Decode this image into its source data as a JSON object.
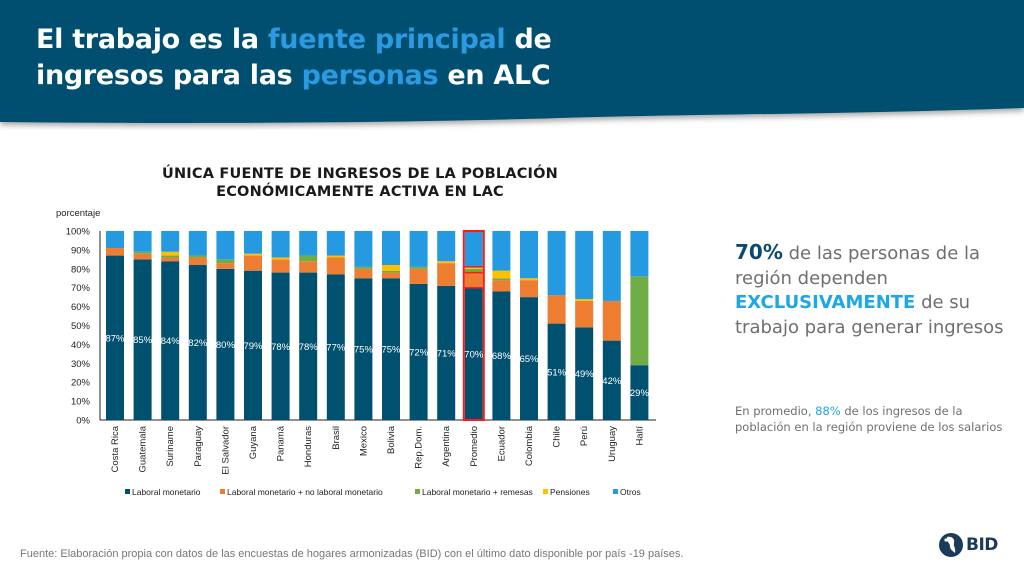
{
  "header": {
    "title_parts": [
      {
        "text": "El trabajo es la ",
        "highlight": false
      },
      {
        "text": "fuente principal",
        "highlight": true
      },
      {
        "text": " de",
        "highlight": false
      },
      {
        "text": "ingresos para las ",
        "highlight": false
      },
      {
        "text": "personas",
        "highlight": true
      },
      {
        "text": " en ALC",
        "highlight": false
      }
    ],
    "bg_color": "#00506f",
    "highlight_color": "#2a9be3"
  },
  "side_panel": {
    "stat": "70%",
    "line1_rest": " de las personas de la región dependen ",
    "emphasis": "EXCLUSIVAMENTE",
    "line_end": " de su trabajo para generar ingresos",
    "note_start": "En promedio, ",
    "note_pct": "88%",
    "note_end": " de los ingresos de la población en la región proviene de los salarios"
  },
  "footer": {
    "source": "Fuente: Elaboración propia con datos de las encuestas de hogares armonizadas (BID) con el último dato disponible por país -19 países.",
    "logo_text": "BID"
  },
  "chart_data": {
    "type": "bar",
    "stacked": true,
    "percent_stacked": true,
    "title": "ÚNICA FUENTE DE INGRESOS DE LA POBLACIÓN ECONÓMICAMENTE ACTIVA EN LAC",
    "title_lines": [
      "ÚNICA FUENTE DE INGRESOS DE LA POBLACIÓN",
      "ECONÓMICAMENTE ACTIVA EN LAC"
    ],
    "xlabel": "",
    "ylabel": "porcentaje",
    "ylim": [
      0,
      100
    ],
    "yticks": [
      "0%",
      "10%",
      "20%",
      "30%",
      "40%",
      "50%",
      "60%",
      "70%",
      "80%",
      "90%",
      "100%"
    ],
    "grid": false,
    "legend_position": "bottom",
    "highlight_category": "Promedio",
    "highlight_color": "#ff1a1a",
    "categories": [
      "Costa Rica",
      "Guatemala",
      "Suriname",
      "Paraguay",
      "El Salvador",
      "Guyana",
      "Panamá",
      "Honduras",
      "Brasil",
      "Mexico",
      "Bolivia",
      "Rep.Dom.",
      "Argentina",
      "Promedio",
      "Ecuador",
      "Colombia",
      "Chile",
      "Perú",
      "Uruguay",
      "Haití"
    ],
    "data_labels": [
      "87%",
      "85%",
      "84%",
      "82%",
      "80%",
      "79%",
      "78%",
      "78%",
      "77%",
      "75%",
      "75%",
      "72%",
      "71%",
      "70%",
      "68%",
      "65%",
      "51%",
      "49%",
      "42%",
      "29%"
    ],
    "series": [
      {
        "name": "Laboral monetario",
        "color": "#00506f",
        "values": [
          87,
          85,
          84,
          82,
          80,
          79,
          78,
          78,
          77,
          75,
          75,
          72,
          71,
          70,
          68,
          65,
          51,
          49,
          42,
          29
        ]
      },
      {
        "name": "Laboral monetario + no laboral monetario",
        "color": "#ed7d31",
        "values": [
          4,
          3,
          2,
          4,
          3,
          8,
          7,
          6,
          9,
          5,
          3,
          8,
          12,
          8,
          6,
          9,
          15,
          14,
          21,
          0
        ]
      },
      {
        "name": "Laboral monetario + remesas",
        "color": "#70ad47",
        "values": [
          0,
          1,
          1,
          1,
          2,
          0,
          0,
          3,
          0,
          1,
          1,
          1,
          0,
          2,
          1,
          0,
          0,
          0,
          0,
          47
        ]
      },
      {
        "name": "Pensiones",
        "color": "#ffc000",
        "values": [
          0,
          0,
          2,
          0,
          0,
          1,
          1,
          0,
          1,
          0,
          3,
          0,
          1,
          1,
          4,
          1,
          0,
          1,
          0,
          0
        ]
      },
      {
        "name": "Otros",
        "color": "#259ae0",
        "values": [
          9,
          11,
          11,
          13,
          15,
          12,
          14,
          13,
          13,
          19,
          18,
          19,
          16,
          19,
          21,
          25,
          34,
          36,
          37,
          24
        ]
      }
    ]
  }
}
